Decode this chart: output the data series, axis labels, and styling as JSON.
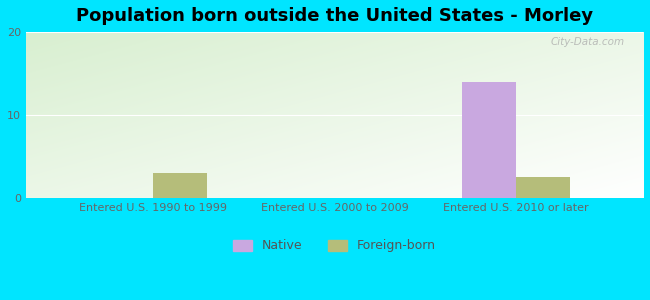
{
  "title": "Population born outside the United States - Morley",
  "categories": [
    "Entered U.S. 1990 to 1999",
    "Entered U.S. 2000 to 2009",
    "Entered U.S. 2010 or later"
  ],
  "native_values": [
    0,
    0,
    14
  ],
  "foreign_values": [
    3,
    0,
    2.5
  ],
  "native_color": "#c9a8e0",
  "foreign_color": "#b5bd7a",
  "ylim": [
    0,
    20
  ],
  "yticks": [
    0,
    10,
    20
  ],
  "background_color": "#00e5ff",
  "plot_bg_color": "#d8efd0",
  "title_fontsize": 13,
  "tick_label_fontsize": 8,
  "legend_labels": [
    "Native",
    "Foreign-born"
  ],
  "bar_width": 0.3,
  "watermark": "City-Data.com"
}
